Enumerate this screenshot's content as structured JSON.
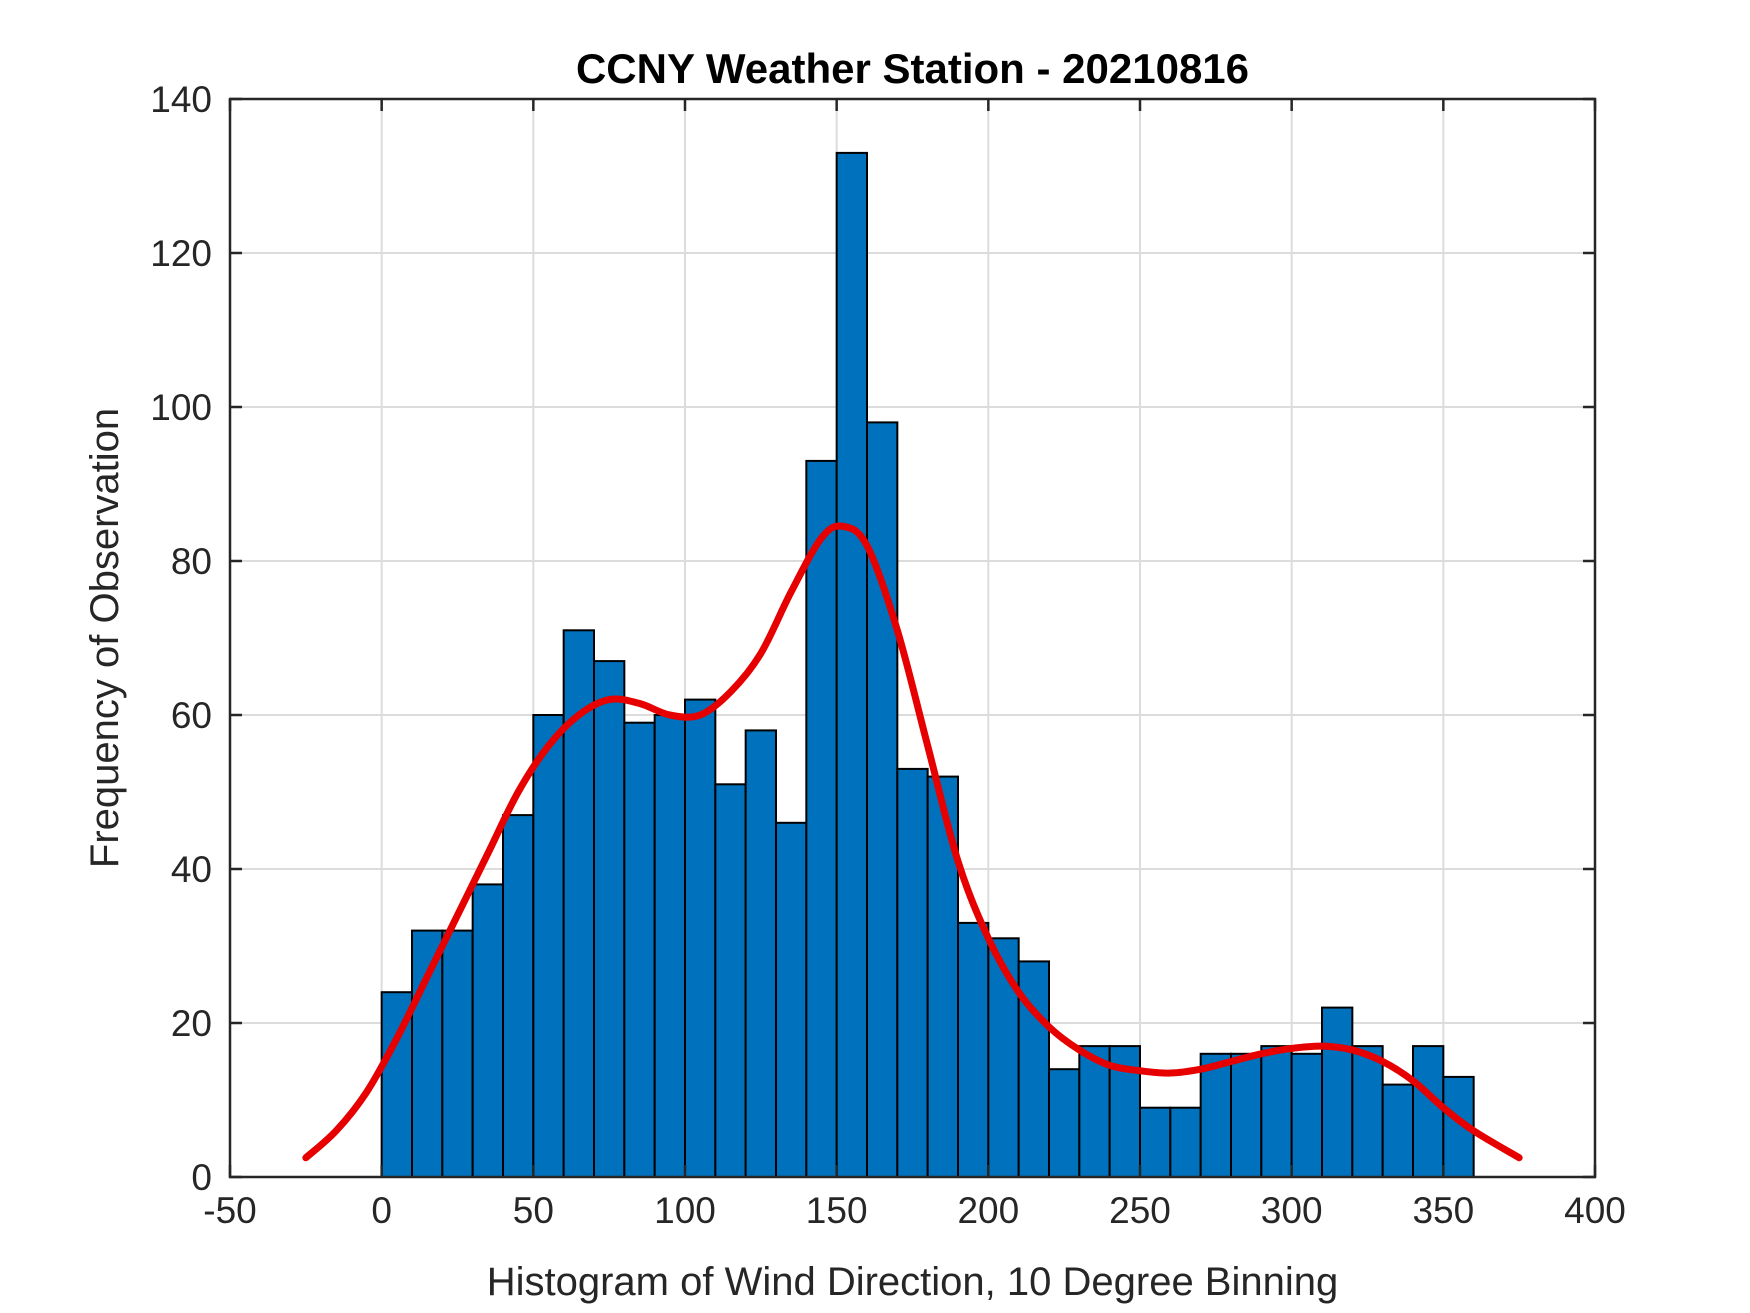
{
  "chart_data": {
    "type": "bar",
    "title": "CCNY Weather Station - 20210816",
    "xlabel": "Histogram of Wind Direction, 10 Degree Binning",
    "ylabel": "Frequency of Observation",
    "xlim": [
      -50,
      400
    ],
    "ylim": [
      0,
      140
    ],
    "xticks": [
      -50,
      0,
      50,
      100,
      150,
      200,
      250,
      300,
      350,
      400
    ],
    "yticks": [
      0,
      20,
      40,
      60,
      80,
      100,
      120,
      140
    ],
    "grid": true,
    "bin_width": 10,
    "bin_edges_start": [
      0,
      10,
      20,
      30,
      40,
      50,
      60,
      70,
      80,
      90,
      100,
      110,
      120,
      130,
      140,
      150,
      160,
      170,
      180,
      190,
      200,
      210,
      220,
      230,
      240,
      250,
      260,
      270,
      280,
      290,
      300,
      310,
      320,
      330,
      340,
      350
    ],
    "values": [
      24,
      32,
      32,
      38,
      47,
      60,
      71,
      67,
      59,
      60,
      62,
      51,
      58,
      46,
      93,
      133,
      98,
      53,
      52,
      33,
      31,
      28,
      14,
      17,
      17,
      9,
      9,
      16,
      16,
      17,
      16,
      22,
      17,
      12,
      17,
      13
    ],
    "fit_curve": {
      "x": [
        -25,
        -15,
        -5,
        5,
        15,
        25,
        35,
        45,
        55,
        65,
        75,
        85,
        95,
        105,
        115,
        125,
        135,
        145,
        152,
        160,
        170,
        180,
        190,
        200,
        210,
        220,
        230,
        240,
        250,
        260,
        270,
        280,
        290,
        300,
        310,
        320,
        330,
        340,
        350,
        360,
        375
      ],
      "y": [
        2.5,
        6,
        11,
        18,
        26,
        34,
        42,
        50,
        56,
        60,
        62,
        61.5,
        60,
        60,
        63,
        68,
        76,
        83,
        84.5,
        82,
        71,
        56,
        41,
        31,
        24,
        19.5,
        16.5,
        14.5,
        13.8,
        13.5,
        14,
        15,
        16,
        16.7,
        17,
        16.5,
        15,
        12.5,
        9,
        6,
        2.5
      ],
      "color": "#e60000"
    },
    "bar_color": "#0072bd"
  }
}
